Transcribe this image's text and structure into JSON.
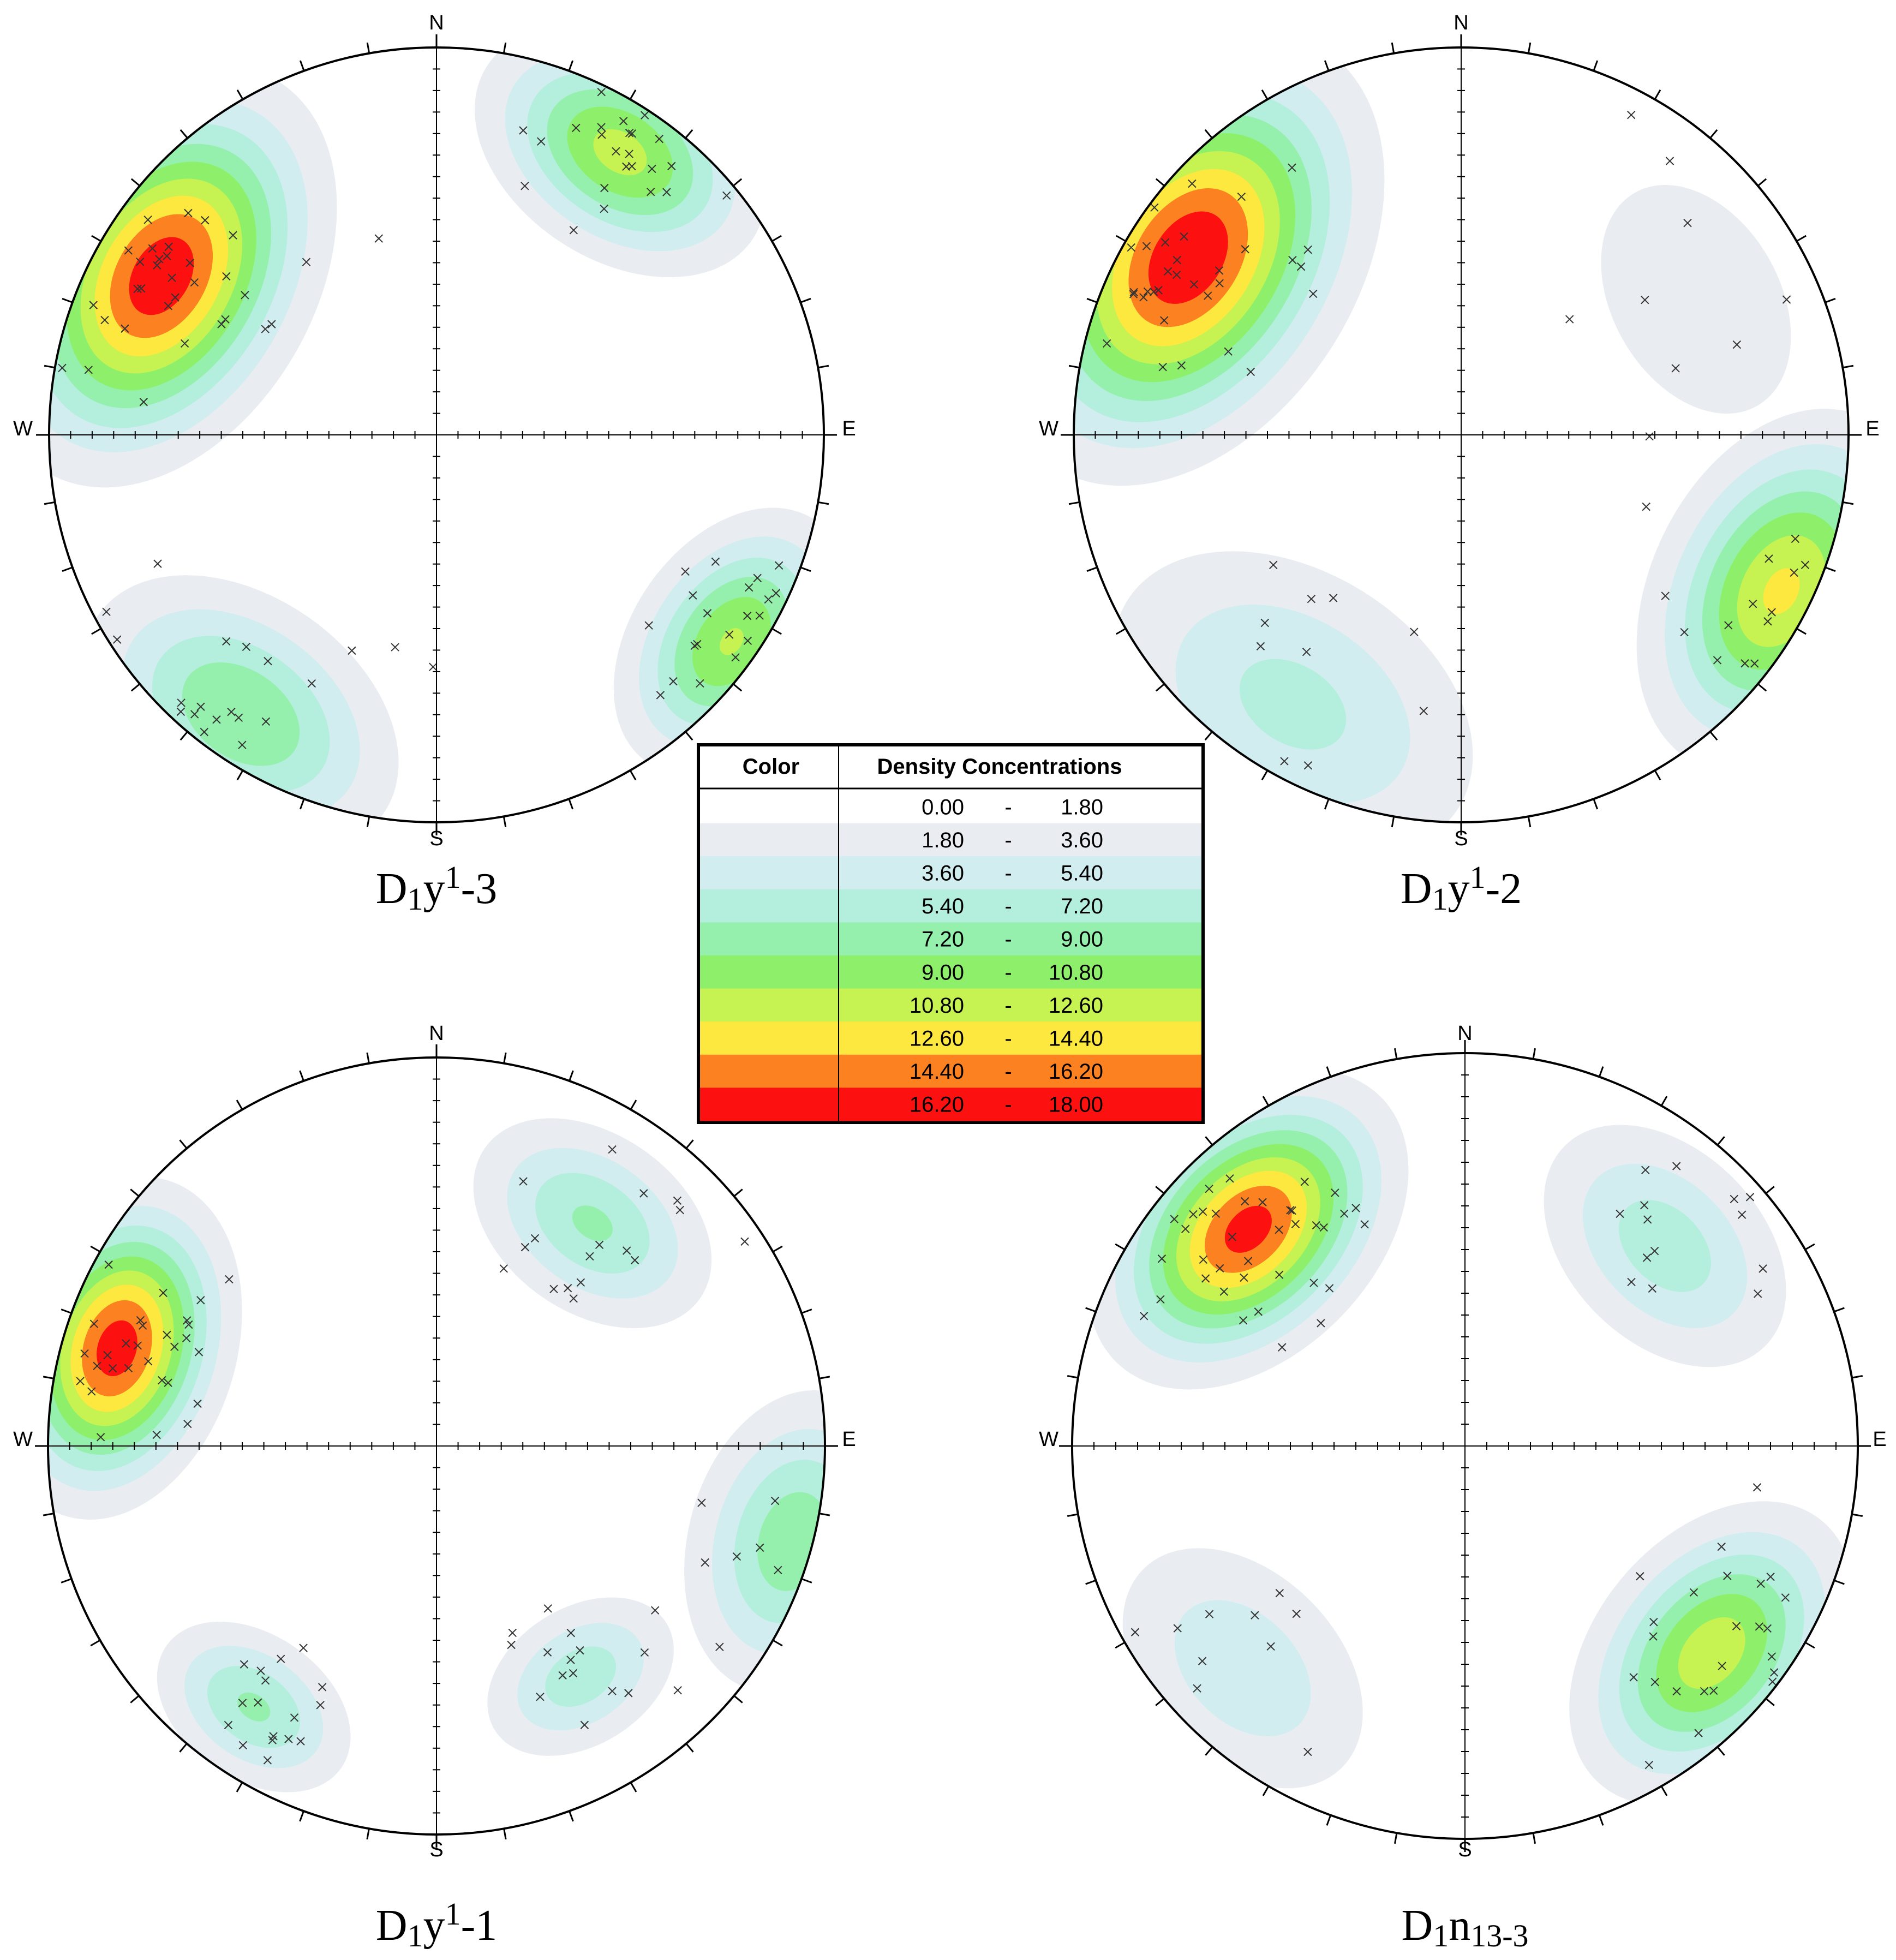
{
  "stereonets": [
    {
      "caption": {
        "base": "D",
        "sub1": "1",
        "mid": "y",
        "sup": "1",
        "tail": "-3"
      },
      "labels": {
        "n": "N",
        "s": "S",
        "e": "E",
        "w": "W"
      },
      "clusters": [
        {
          "az": 300,
          "r": 0.82,
          "peak": 17.5,
          "spread": 0.22
        },
        {
          "az": 33,
          "r": 0.87,
          "peak": 11.5,
          "spread": 0.17
        },
        {
          "az": 125,
          "r": 0.93,
          "peak": 11.0,
          "spread": 0.16
        },
        {
          "az": 215,
          "r": 0.88,
          "peak": 9.0,
          "spread": 0.2
        }
      ]
    },
    {
      "caption": {
        "base": "D",
        "sub1": "1",
        "mid": "y",
        "sup": "1",
        "tail": "-2"
      },
      "labels": {
        "n": "N",
        "s": "S",
        "e": "E",
        "w": "W"
      },
      "clusters": [
        {
          "az": 303,
          "r": 0.84,
          "peak": 17.8,
          "spread": 0.24
        },
        {
          "az": 116,
          "r": 0.92,
          "peak": 13.0,
          "spread": 0.2
        },
        {
          "az": 212,
          "r": 0.82,
          "peak": 6.0,
          "spread": 0.26
        },
        {
          "az": 60,
          "r": 0.7,
          "peak": 3.5,
          "spread": 0.22
        }
      ]
    },
    {
      "caption": {
        "base": "D",
        "sub1": "1",
        "mid": "y",
        "sup": "1",
        "tail": "-1"
      },
      "labels": {
        "n": "N",
        "s": "S",
        "e": "E",
        "w": "W"
      },
      "clusters": [
        {
          "az": 287,
          "r": 0.86,
          "peak": 17.2,
          "spread": 0.17
        },
        {
          "az": 35,
          "r": 0.7,
          "peak": 7.5,
          "spread": 0.16
        },
        {
          "az": 105,
          "r": 0.95,
          "peak": 8.5,
          "spread": 0.18
        },
        {
          "az": 215,
          "r": 0.82,
          "peak": 7.5,
          "spread": 0.13
        },
        {
          "az": 148,
          "r": 0.7,
          "peak": 6.5,
          "spread": 0.13
        }
      ]
    },
    {
      "caption": {
        "base": "D",
        "sub1": "1",
        "mid": "n",
        "sub2": "13-3",
        "tail": ""
      },
      "labels": {
        "n": "N",
        "s": "S",
        "e": "E",
        "w": "W"
      },
      "clusters": [
        {
          "az": 315,
          "r": 0.78,
          "peak": 17.0,
          "spread": 0.18
        },
        {
          "az": 130,
          "r": 0.82,
          "peak": 12.0,
          "spread": 0.18
        },
        {
          "az": 45,
          "r": 0.72,
          "peak": 6.5,
          "spread": 0.18
        },
        {
          "az": 225,
          "r": 0.8,
          "peak": 5.0,
          "spread": 0.2
        }
      ]
    }
  ],
  "legend": {
    "header_color": "Color",
    "header_density": "Density Concentrations",
    "rows": [
      {
        "from": "0.00",
        "sep": "-",
        "to": "1.80",
        "color": "#ffffff"
      },
      {
        "from": "1.80",
        "sep": "-",
        "to": "3.60",
        "color": "#e9edf2"
      },
      {
        "from": "3.60",
        "sep": "-",
        "to": "5.40",
        "color": "#d2edf0"
      },
      {
        "from": "5.40",
        "sep": "-",
        "to": "7.20",
        "color": "#b4eedc"
      },
      {
        "from": "7.20",
        "sep": "-",
        "to": "9.00",
        "color": "#94f0ac"
      },
      {
        "from": "9.00",
        "sep": "-",
        "to": "10.80",
        "color": "#8ef06a"
      },
      {
        "from": "10.80",
        "sep": "-",
        "to": "12.60",
        "color": "#c6f252"
      },
      {
        "from": "12.60",
        "sep": "-",
        "to": "14.40",
        "color": "#fde840"
      },
      {
        "from": "14.40",
        "sep": "-",
        "to": "16.20",
        "color": "#fc8120"
      },
      {
        "from": "16.20",
        "sep": "-",
        "to": "18.00",
        "color": "#fc1010"
      }
    ]
  }
}
